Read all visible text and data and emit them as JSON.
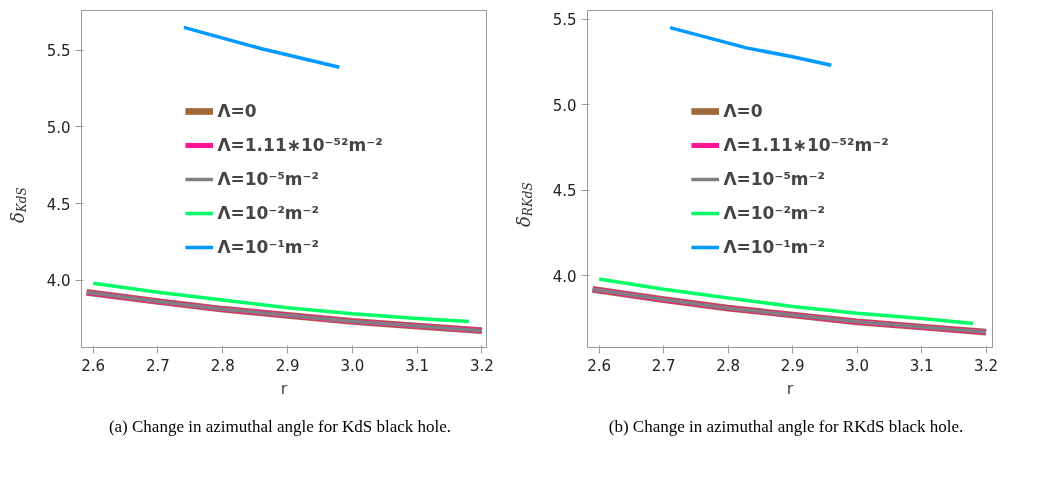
{
  "chart_data": [
    {
      "type": "line",
      "xlabel": "r",
      "ylabel": "δ$_{KdS}$",
      "xlim": [
        2.582,
        3.207
      ],
      "ylim": [
        3.56,
        5.76
      ],
      "xticks": [
        {
          "value": 2.6,
          "label": "2.6"
        },
        {
          "value": 2.7,
          "label": "2.7"
        },
        {
          "value": 2.8,
          "label": "2.8"
        },
        {
          "value": 2.9,
          "label": "2.9"
        },
        {
          "value": 3.0,
          "label": "3.0"
        },
        {
          "value": 3.1,
          "label": "3.1"
        },
        {
          "value": 3.2,
          "label": "3.2"
        }
      ],
      "yticks": [
        {
          "value": 4.0,
          "label": "4.0"
        },
        {
          "value": 4.5,
          "label": "4.5"
        },
        {
          "value": 5.0,
          "label": "5.0"
        },
        {
          "value": 5.5,
          "label": "5.5"
        }
      ],
      "grid": false,
      "legend": "center",
      "line_style": "solid",
      "marker": "none",
      "series": [
        {
          "name": "Λ=0",
          "color": "#a0693c",
          "x": [
            2.59,
            2.7,
            2.8,
            2.9,
            3.0,
            3.1,
            3.2
          ],
          "values": [
            3.92,
            3.86,
            3.81,
            3.77,
            3.73,
            3.7,
            3.67
          ]
        },
        {
          "name": "Λ=1.11∗10⁻⁵²m⁻²",
          "color": "#ff1493",
          "x": [
            2.59,
            2.7,
            2.8,
            2.9,
            3.0,
            3.1,
            3.2
          ],
          "values": [
            3.92,
            3.86,
            3.81,
            3.77,
            3.73,
            3.7,
            3.67
          ]
        },
        {
          "name": "Λ=10⁻⁵m⁻²",
          "color": "#808080",
          "x": [
            2.59,
            2.7,
            2.8,
            2.9,
            3.0,
            3.1,
            3.2
          ],
          "values": [
            3.92,
            3.86,
            3.81,
            3.77,
            3.73,
            3.7,
            3.67
          ]
        },
        {
          "name": "Λ=10⁻²m⁻²",
          "color": "#00ff66",
          "x": [
            2.6,
            2.7,
            2.8,
            2.9,
            3.0,
            3.1,
            3.18
          ],
          "values": [
            3.98,
            3.92,
            3.87,
            3.82,
            3.78,
            3.75,
            3.73
          ]
        },
        {
          "name": "Λ=10⁻¹m⁻²",
          "color": "#0099ff",
          "x": [
            2.74,
            2.8,
            2.86,
            2.92,
            2.98
          ],
          "values": [
            5.65,
            5.58,
            5.51,
            5.45,
            5.39
          ]
        }
      ],
      "annotations": [
        "(a) Change in azimuthal angle for KdS black hole."
      ]
    },
    {
      "type": "line",
      "xlabel": "r",
      "ylabel": "δ$_{RKdS}$",
      "xlim": [
        2.582,
        3.21
      ],
      "ylim": [
        3.58,
        5.55
      ],
      "xticks": [
        {
          "value": 2.6,
          "label": "2.6"
        },
        {
          "value": 2.7,
          "label": "2.7"
        },
        {
          "value": 2.8,
          "label": "2.8"
        },
        {
          "value": 2.9,
          "label": "2.9"
        },
        {
          "value": 3.0,
          "label": "3.0"
        },
        {
          "value": 3.1,
          "label": "3.1"
        },
        {
          "value": 3.2,
          "label": "3.2"
        }
      ],
      "yticks": [
        {
          "value": 4.0,
          "label": "4.0"
        },
        {
          "value": 4.5,
          "label": "4.5"
        },
        {
          "value": 5.0,
          "label": "5.0"
        },
        {
          "value": 5.5,
          "label": "5.5"
        }
      ],
      "grid": false,
      "legend": "center",
      "line_style": "solid",
      "marker": "none",
      "series": [
        {
          "name": "Λ=0",
          "color": "#a0693c",
          "x": [
            2.59,
            2.7,
            2.8,
            2.9,
            3.0,
            3.1,
            3.2
          ],
          "values": [
            3.92,
            3.86,
            3.81,
            3.77,
            3.73,
            3.7,
            3.67
          ]
        },
        {
          "name": "Λ=1.11∗10⁻⁵²m⁻²",
          "color": "#ff1493",
          "x": [
            2.59,
            2.7,
            2.8,
            2.9,
            3.0,
            3.1,
            3.2
          ],
          "values": [
            3.92,
            3.86,
            3.81,
            3.77,
            3.73,
            3.7,
            3.67
          ]
        },
        {
          "name": "Λ=10⁻⁵m⁻²",
          "color": "#808080",
          "x": [
            2.59,
            2.7,
            2.8,
            2.9,
            3.0,
            3.1,
            3.2
          ],
          "values": [
            3.92,
            3.86,
            3.81,
            3.77,
            3.73,
            3.7,
            3.67
          ]
        },
        {
          "name": "Λ=10⁻²m⁻²",
          "color": "#00ff66",
          "x": [
            2.6,
            2.7,
            2.8,
            2.9,
            3.0,
            3.1,
            3.18
          ],
          "values": [
            3.98,
            3.92,
            3.87,
            3.82,
            3.78,
            3.75,
            3.72
          ]
        },
        {
          "name": "Λ=10⁻¹m⁻²",
          "color": "#0099ff",
          "x": [
            2.71,
            2.77,
            2.83,
            2.9,
            2.96
          ],
          "values": [
            5.45,
            5.39,
            5.33,
            5.28,
            5.23
          ]
        }
      ],
      "annotations": [
        "(b) Change in azimuthal angle for RKdS black hole."
      ]
    }
  ]
}
